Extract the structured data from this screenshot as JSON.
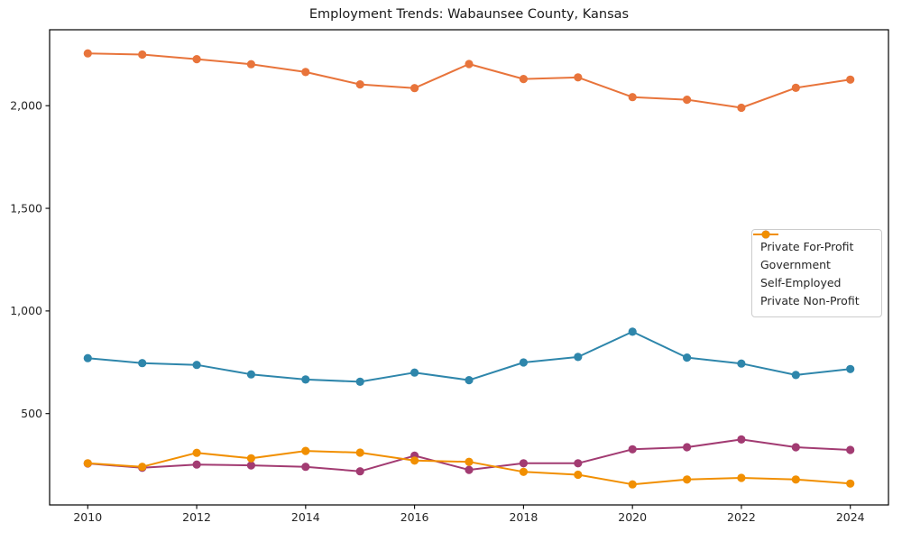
{
  "chart_data": {
    "type": "line",
    "title": "Employment Trends: Wabaunsee County, Kansas",
    "xlabel": "",
    "ylabel": "",
    "x": [
      2010,
      2011,
      2012,
      2013,
      2014,
      2015,
      2016,
      2017,
      2018,
      2019,
      2020,
      2021,
      2022,
      2023,
      2024
    ],
    "series": [
      {
        "name": "Private For-Profit",
        "color": "#E8743B",
        "values": [
          2255,
          2249,
          2227,
          2202,
          2164,
          2104,
          2086,
          2203,
          2130,
          2138,
          2042,
          2029,
          1990,
          2087,
          2127
        ]
      },
      {
        "name": "Government",
        "color": "#2E86AB",
        "values": [
          770,
          746,
          737,
          691,
          666,
          655,
          700,
          663,
          749,
          776,
          899,
          773,
          744,
          688,
          717
        ]
      },
      {
        "name": "Self-Employed",
        "color": "#A23B72",
        "values": [
          257,
          236,
          252,
          248,
          241,
          219,
          295,
          226,
          258,
          258,
          326,
          336,
          374,
          336,
          323
        ]
      },
      {
        "name": "Private Non-Profit",
        "color": "#F18F01",
        "values": [
          258,
          241,
          309,
          282,
          318,
          310,
          271,
          265,
          216,
          202,
          155,
          179,
          187,
          179,
          159
        ]
      }
    ],
    "xticks": {
      "values": [
        2010,
        2012,
        2014,
        2016,
        2018,
        2020,
        2022,
        2024
      ],
      "labels": [
        "2010",
        "2012",
        "2014",
        "2016",
        "2018",
        "2020",
        "2022",
        "2024"
      ]
    },
    "yticks": {
      "values": [
        500,
        1000,
        1500,
        2000
      ],
      "labels": [
        "500",
        "1,000",
        "1,500",
        "2,000"
      ]
    },
    "xlim": [
      2009.3,
      2024.7
    ],
    "ylim": [
      55,
      2370
    ],
    "grid": false,
    "legend_position": "center-right",
    "line_width": 2,
    "marker": "circle",
    "marker_radius": 4.6,
    "spine_color": "#000000",
    "background": "#ffffff"
  }
}
